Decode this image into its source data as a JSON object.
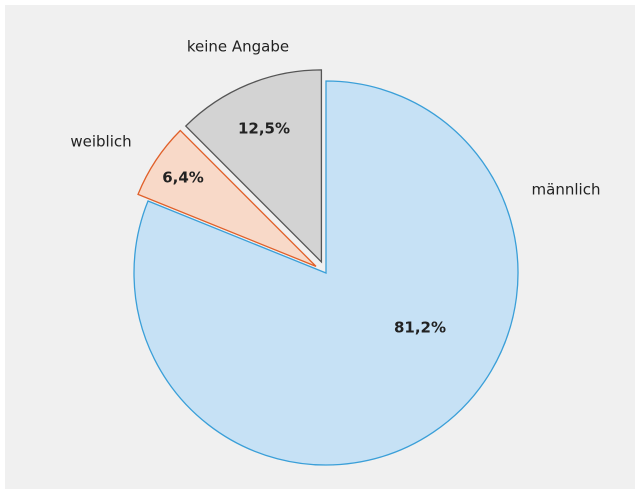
{
  "chart_data": {
    "type": "pie",
    "categories": [
      "männlich",
      "weiblich",
      "keine Angabe"
    ],
    "values": [
      81.2,
      6.4,
      12.5
    ],
    "value_labels": [
      "81,2%",
      "6,4%",
      "12,5%"
    ],
    "colors": [
      "#c6e1f5",
      "#f8d9c8",
      "#d3d3d3"
    ],
    "edge_colors": [
      "#3a9fd8",
      "#e0602a",
      "#555555"
    ],
    "explode": [
      false,
      true,
      true
    ]
  }
}
